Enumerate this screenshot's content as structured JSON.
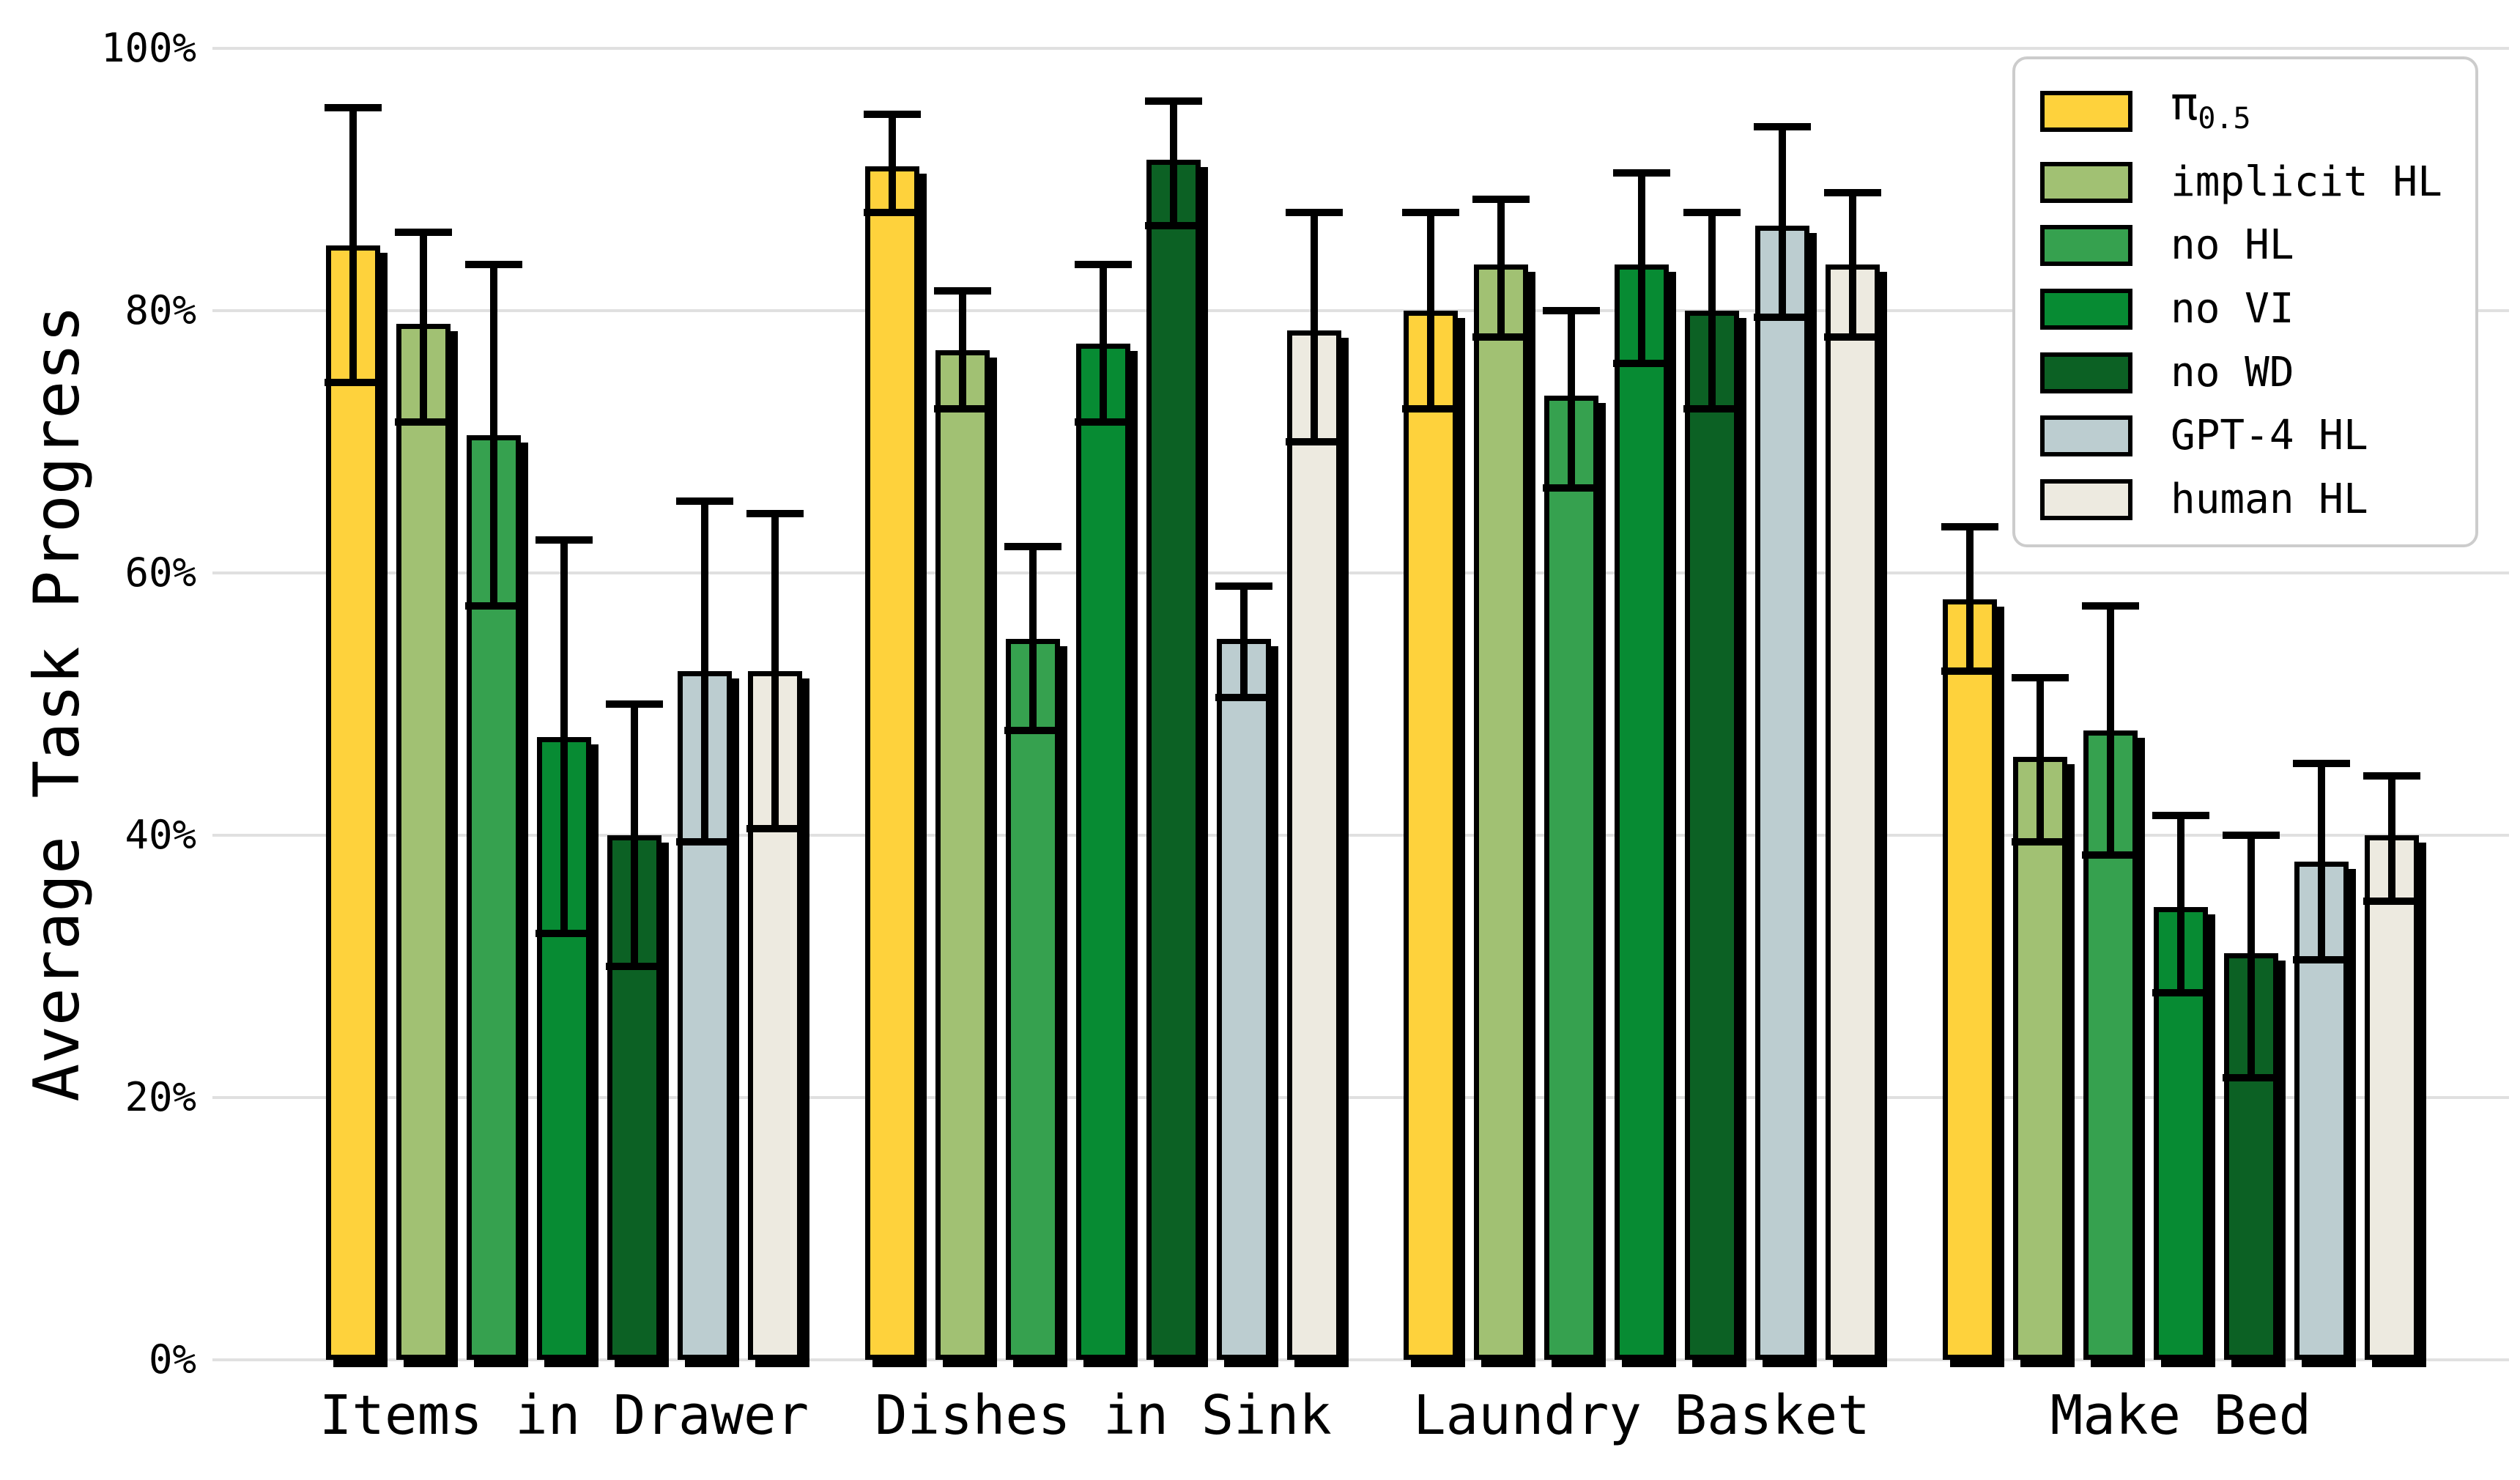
{
  "chart_data": {
    "type": "bar",
    "title": "",
    "xlabel": "",
    "ylabel": "Average Task Progress",
    "ylim": [
      0,
      100
    ],
    "grid": true,
    "legend_position": "upper right",
    "yticks": [
      {
        "value": 0,
        "label": "0%"
      },
      {
        "value": 20,
        "label": "20%"
      },
      {
        "value": 40,
        "label": "40%"
      },
      {
        "value": 60,
        "label": "60%"
      },
      {
        "value": 80,
        "label": "80%"
      },
      {
        "value": 100,
        "label": "100%"
      }
    ],
    "categories": [
      "Items in Drawer",
      "Dishes in Sink",
      "Laundry Basket",
      "Make Bed"
    ],
    "series": [
      {
        "name": "pi-0.5",
        "label": "π",
        "label_sub": "0.5",
        "color": "#FED23C",
        "values": [
          85.0,
          91.0,
          80.0,
          58.0
        ],
        "err_low": [
          74.5,
          87.5,
          72.5,
          52.5
        ],
        "err_high": [
          95.5,
          95.0,
          87.5,
          63.5
        ]
      },
      {
        "name": "implicit-HL",
        "label": "implicit HL",
        "color": "#A1C173",
        "values": [
          79.0,
          77.0,
          83.5,
          46.0
        ],
        "err_low": [
          71.5,
          72.5,
          78.0,
          39.5
        ],
        "err_high": [
          86.0,
          81.5,
          88.5,
          52.0
        ]
      },
      {
        "name": "no-HL",
        "label": "no HL",
        "color": "#36A14F",
        "values": [
          70.5,
          55.0,
          73.5,
          48.0
        ],
        "err_low": [
          57.5,
          48.0,
          66.5,
          38.5
        ],
        "err_high": [
          83.5,
          62.0,
          80.0,
          57.5
        ]
      },
      {
        "name": "no-VI",
        "label": "no VI",
        "color": "#078B33",
        "values": [
          47.5,
          77.5,
          83.5,
          34.5
        ],
        "err_low": [
          32.5,
          71.5,
          76.0,
          28.0
        ],
        "err_high": [
          62.5,
          83.5,
          90.5,
          41.5
        ]
      },
      {
        "name": "no-WD",
        "label": "no WD",
        "color": "#0C6124",
        "values": [
          40.0,
          91.5,
          80.0,
          31.0
        ],
        "err_low": [
          30.0,
          86.5,
          72.5,
          21.5
        ],
        "err_high": [
          50.0,
          96.0,
          87.5,
          40.0
        ]
      },
      {
        "name": "GPT-4-HL",
        "label": "GPT-4 HL",
        "color": "#BCCDD0",
        "values": [
          52.5,
          55.0,
          86.5,
          38.0
        ],
        "err_low": [
          39.5,
          50.5,
          79.5,
          30.5
        ],
        "err_high": [
          65.5,
          59.0,
          94.0,
          45.5
        ]
      },
      {
        "name": "human-HL",
        "label": "human HL",
        "color": "#EDEAE0",
        "values": [
          52.5,
          78.5,
          83.5,
          40.0
        ],
        "err_low": [
          40.5,
          70.0,
          78.0,
          35.0
        ],
        "err_high": [
          64.5,
          87.5,
          89.0,
          44.5
        ]
      }
    ]
  },
  "colors": {
    "background": "#FFFFFF",
    "gridline": "#E0E0E0",
    "bar_outline": "#000000",
    "bar_shadow": "#000000",
    "error_bar": "#000000",
    "legend_border": "#CCCCCC",
    "text": "#000000"
  }
}
